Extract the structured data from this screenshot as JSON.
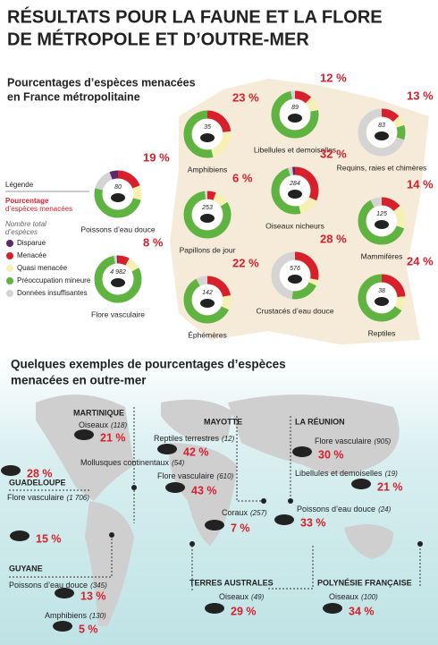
{
  "header": {
    "title_lines": [
      "RÉSULTATS POUR LA FAUNE ET LA FLORE",
      "DE MÉTROPOLE ET D’OUTRE-MER"
    ]
  },
  "metropole": {
    "subtitle_lines": [
      "Pourcentages d’espèces menacées",
      "en France métropolitaine"
    ],
    "legend": {
      "title": "Légende",
      "pct_lines": [
        "Pourcentage",
        "d’espèces menacées"
      ],
      "total_lines": [
        "Nombre total",
        "d’espèces"
      ],
      "items": [
        {
          "label": "Disparue",
          "color": "#5b2a6e"
        },
        {
          "label": "Menacée",
          "color": "#d7202b"
        },
        {
          "label": "Quasi menacée",
          "color": "#f7f0b5"
        },
        {
          "label": "Préoccupation mineure",
          "color": "#5fb340"
        },
        {
          "label": "Données insuffisantes",
          "color": "#d4d4d4"
        }
      ]
    },
    "groups": [
      {
        "name": "Amphibiens",
        "total": 35,
        "value_label": "23 %",
        "segments": [
          0,
          23,
          23,
          54,
          0
        ]
      },
      {
        "name": "Libellules et demoiselles",
        "total": 89,
        "value_label": "12 %",
        "segments": [
          0,
          12,
          10,
          75,
          3
        ]
      },
      {
        "name": "Requins, raies et chimères",
        "total": 83,
        "value_label": "13 %",
        "segments": [
          0,
          13,
          7,
          10,
          70
        ]
      },
      {
        "name": "Poissons d’eau douce",
        "total": 80,
        "value_label": "19 %",
        "segments": [
          6,
          19,
          10,
          50,
          15
        ]
      },
      {
        "name": "Papillons de jour",
        "total": 253,
        "value_label": "6 %",
        "segments": [
          0,
          6,
          10,
          82,
          2
        ]
      },
      {
        "name": "Oiseaux nicheurs",
        "total": 284,
        "value_label": "32 %",
        "segments": [
          2,
          32,
          14,
          49,
          3
        ]
      },
      {
        "name": "Mammifères",
        "total": 125,
        "value_label": "14 %",
        "segments": [
          0,
          14,
          16,
          62,
          8
        ]
      },
      {
        "name": "Flore vasculaire",
        "total": {
          "value": 4982,
          "label": "4 982"
        },
        "value_label": "8 %",
        "segments": [
          1,
          8,
          9,
          80,
          2
        ]
      },
      {
        "name": "Éphémères",
        "total": 142,
        "value_label": "22 %",
        "segments": [
          0,
          22,
          10,
          60,
          8
        ]
      },
      {
        "name": "Crustacés d’eau douce",
        "total": 576,
        "value_label": "28 %",
        "segments": [
          0,
          28,
          4,
          20,
          48
        ]
      },
      {
        "name": "Reptiles",
        "total": 38,
        "value_label": "24 %",
        "segments": [
          0,
          24,
          10,
          66,
          0
        ]
      }
    ]
  },
  "outremer": {
    "title_lines": [
      "Quelques exemples de pourcentages d’espèces",
      "menacées en outre-mer"
    ],
    "regions": [
      {
        "name": "MARTINIQUE",
        "items": [
          {
            "name": "Oiseaux",
            "count": "(118)",
            "pct": "21 %"
          },
          {
            "name": "Mollusques continentaux",
            "count": "(54)",
            "pct": "28 %"
          }
        ]
      },
      {
        "name": "GUADELOUPE",
        "items": [
          {
            "name": "Flore vasculaire",
            "count": "(1 706)",
            "pct": "15 %"
          }
        ]
      },
      {
        "name": "GUYANE",
        "items": [
          {
            "name": "Poissons d’eau douce",
            "count": "(345)",
            "pct": "13 %"
          },
          {
            "name": "Amphibiens",
            "count": "(130)",
            "pct": "5 %"
          }
        ]
      },
      {
        "name": "MAYOTTE",
        "items": [
          {
            "name": "Reptiles terrestres",
            "count": "(12)",
            "pct": "42 %"
          },
          {
            "name": "Flore vasculaire",
            "count": "(610)",
            "pct": "43 %"
          },
          {
            "name": "Coraux",
            "count": "(257)",
            "pct": "7 %"
          }
        ]
      },
      {
        "name": "LA RÉUNION",
        "items": [
          {
            "name": "Flore vasculaire",
            "count": "(905)",
            "pct": "30 %"
          },
          {
            "name": "Libellules et demoiselles",
            "count": "(19)",
            "pct": "21 %"
          },
          {
            "name": "Poissons d’eau douce",
            "count": "(24)",
            "pct": "33 %"
          }
        ]
      },
      {
        "name": "TERRES AUSTRALES",
        "items": [
          {
            "name": "Oiseaux",
            "count": "(49)",
            "pct": "29 %"
          }
        ]
      },
      {
        "name": "POLYNÉSIE FRANÇAISE",
        "items": [
          {
            "name": "Oiseaux",
            "count": "(100)",
            "pct": "34 %"
          }
        ]
      }
    ]
  }
}
